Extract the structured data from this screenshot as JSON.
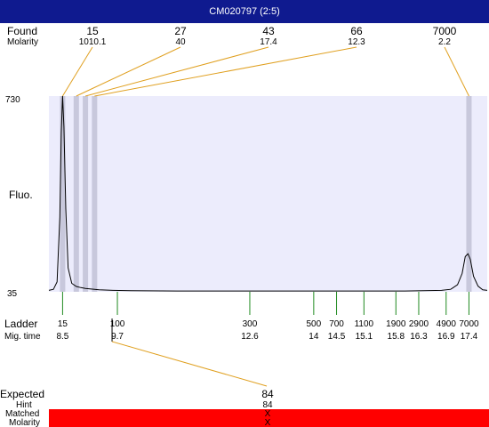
{
  "window": {
    "title": "CM020797 (2:5)"
  },
  "labels": {
    "found": "Found",
    "molarity": "Molarity",
    "fluo": "Fluo.",
    "ladder": "Ladder",
    "mig_time": "Mig. time",
    "expected": "Expected",
    "hint": "Hint",
    "matched": "Matched",
    "molarity_bottom": "Molarity"
  },
  "chart_data": {
    "type": "line",
    "ylim": [
      35,
      730
    ],
    "y_ticks": [
      "730",
      "35"
    ],
    "ylabel": "Fluo.",
    "xlim": [
      8.2,
      17.8
    ],
    "found_peaks": [
      {
        "size": "15",
        "molarity": "1010.1",
        "time": 8.5
      },
      {
        "size": "27",
        "molarity": "40",
        "time": 8.8
      },
      {
        "size": "43",
        "molarity": "17.4",
        "time": 9.0
      },
      {
        "size": "66",
        "molarity": "12.3",
        "time": 9.2
      },
      {
        "size": "7000",
        "molarity": "2.2",
        "time": 17.4
      }
    ],
    "ladder": [
      {
        "size": "15",
        "time": "8.5"
      },
      {
        "size": "100",
        "time": "9.7"
      },
      {
        "size": "300",
        "time": "12.6"
      },
      {
        "size": "500",
        "time": "14"
      },
      {
        "size": "700",
        "time": "14.5"
      },
      {
        "size": "1100",
        "time": "15.1"
      },
      {
        "size": "1900",
        "time": "15.8"
      },
      {
        "size": "2900",
        "time": "16.3"
      },
      {
        "size": "4900",
        "time": "16.9"
      },
      {
        "size": "7000",
        "time": "17.4"
      }
    ],
    "trace": [
      [
        8.2,
        40
      ],
      [
        8.3,
        44
      ],
      [
        8.38,
        70
      ],
      [
        8.44,
        300
      ],
      [
        8.47,
        600
      ],
      [
        8.5,
        730
      ],
      [
        8.53,
        620
      ],
      [
        8.57,
        330
      ],
      [
        8.62,
        120
      ],
      [
        8.7,
        65
      ],
      [
        8.8,
        54
      ],
      [
        8.9,
        50
      ],
      [
        9.0,
        47
      ],
      [
        9.1,
        45
      ],
      [
        9.3,
        42
      ],
      [
        9.6,
        40
      ],
      [
        10.0,
        39
      ],
      [
        11.0,
        38
      ],
      [
        12.0,
        38
      ],
      [
        13.0,
        38
      ],
      [
        14.0,
        38
      ],
      [
        15.0,
        38
      ],
      [
        16.0,
        38
      ],
      [
        16.8,
        40
      ],
      [
        17.0,
        44
      ],
      [
        17.15,
        60
      ],
      [
        17.25,
        100
      ],
      [
        17.32,
        160
      ],
      [
        17.38,
        170
      ],
      [
        17.43,
        150
      ],
      [
        17.5,
        90
      ],
      [
        17.6,
        55
      ],
      [
        17.7,
        42
      ],
      [
        17.8,
        40
      ]
    ],
    "expected": {
      "label": "84",
      "hint": "84",
      "matched": "X",
      "molarity": "X",
      "time": 9.7
    },
    "colors": {
      "title_bar": "#0f1a8f",
      "plot_bg": "#ececfc",
      "peak_band": "#c8c8dc",
      "leader": "#e0a020",
      "ladder_tick": "#208a20",
      "match_bar": "#ff0000"
    }
  }
}
